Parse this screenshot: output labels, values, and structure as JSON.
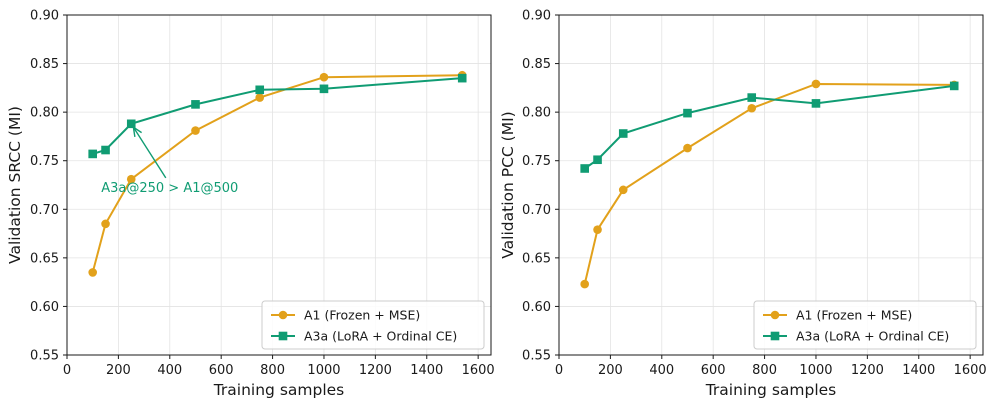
{
  "chart_data": [
    {
      "type": "line",
      "xlabel": "Training samples",
      "ylabel": "Validation SRCC (MI)",
      "xlim": [
        0,
        1650
      ],
      "ylim": [
        0.55,
        0.9
      ],
      "xticks": [
        0,
        200,
        400,
        600,
        800,
        1000,
        1200,
        1400,
        1600
      ],
      "yticks": [
        0.55,
        0.6,
        0.65,
        0.7,
        0.75,
        0.8,
        0.85,
        0.9
      ],
      "grid": true,
      "legend_position": "lower-right",
      "series": [
        {
          "name": "A1 (Frozen + MSE)",
          "color": "#e2a11b",
          "marker": "circle",
          "x": [
            100,
            150,
            250,
            500,
            750,
            1000,
            1538
          ],
          "y": [
            0.635,
            0.685,
            0.731,
            0.781,
            0.815,
            0.836,
            0.838
          ]
        },
        {
          "name": "A3a (LoRA + Ordinal CE)",
          "color": "#109c73",
          "marker": "square",
          "x": [
            100,
            150,
            250,
            500,
            750,
            1000,
            1538
          ],
          "y": [
            0.757,
            0.761,
            0.788,
            0.808,
            0.823,
            0.824,
            0.835
          ]
        }
      ],
      "annotations": [
        {
          "text": "A3a@250 > A1@500",
          "x": 250,
          "y": 0.788,
          "text_x": 400,
          "text_y": 0.722,
          "color": "#109c73"
        }
      ]
    },
    {
      "type": "line",
      "xlabel": "Training samples",
      "ylabel": "Validation PCC (MI)",
      "xlim": [
        0,
        1650
      ],
      "ylim": [
        0.55,
        0.9
      ],
      "xticks": [
        0,
        200,
        400,
        600,
        800,
        1000,
        1200,
        1400,
        1600
      ],
      "yticks": [
        0.55,
        0.6,
        0.65,
        0.7,
        0.75,
        0.8,
        0.85,
        0.9
      ],
      "grid": true,
      "legend_position": "lower-right",
      "series": [
        {
          "name": "A1 (Frozen + MSE)",
          "color": "#e2a11b",
          "marker": "circle",
          "x": [
            100,
            150,
            250,
            500,
            750,
            1000,
            1538
          ],
          "y": [
            0.623,
            0.679,
            0.72,
            0.763,
            0.804,
            0.829,
            0.828
          ]
        },
        {
          "name": "A3a (LoRA + Ordinal CE)",
          "color": "#109c73",
          "marker": "square",
          "x": [
            100,
            150,
            250,
            500,
            750,
            1000,
            1538
          ],
          "y": [
            0.742,
            0.751,
            0.778,
            0.799,
            0.815,
            0.809,
            0.827
          ]
        }
      ],
      "annotations": []
    }
  ]
}
